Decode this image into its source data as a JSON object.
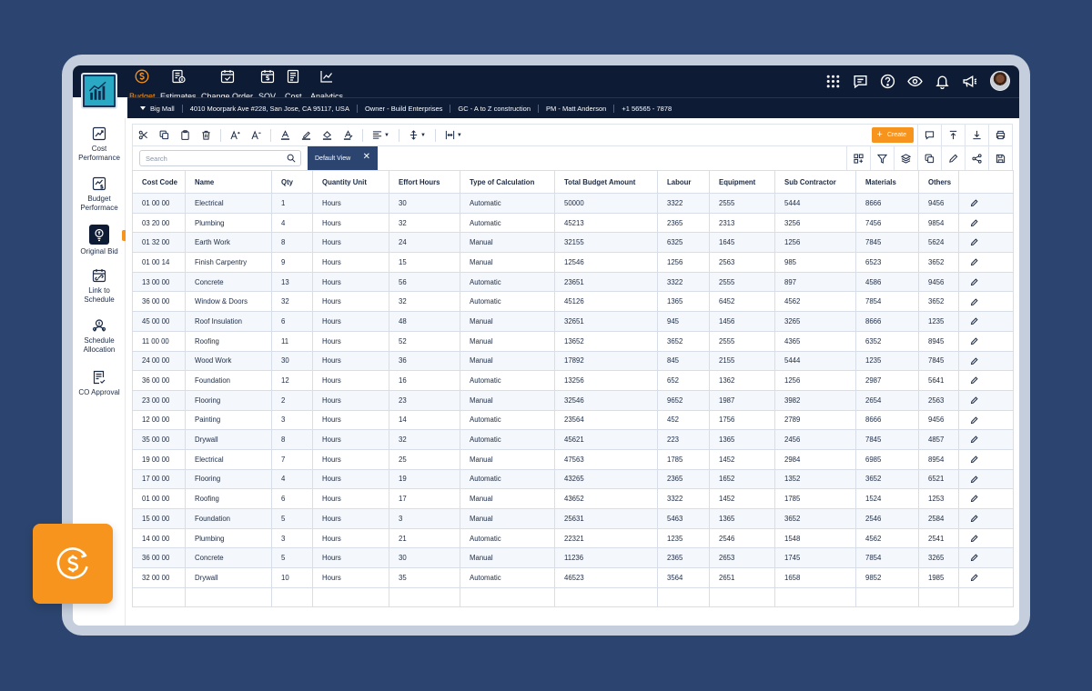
{
  "app": {
    "nav": [
      {
        "label": "Budget",
        "icon": "dollar-icon",
        "active": true
      },
      {
        "label": "Estimates",
        "icon": "estimates-icon",
        "active": false
      },
      {
        "label": "Change Order",
        "icon": "calendar-check-icon",
        "active": false
      },
      {
        "label": "SOV",
        "icon": "calendar-dollar-icon",
        "active": false
      },
      {
        "label": "Cost",
        "icon": "cost-icon",
        "active": false
      },
      {
        "label": "Analytics",
        "icon": "line-chart-icon",
        "active": false
      }
    ],
    "top_icons": [
      "apps-grid-icon",
      "chat-icon",
      "help-icon",
      "eye-icon",
      "bell-icon",
      "megaphone-icon"
    ],
    "accent": "#f7941d",
    "nav_bg": "#0e1b35"
  },
  "project_info": {
    "project": "Big Mall",
    "address": "4010 Moorpark Ave #228, San Jose, CA 95117, USA",
    "owner": "Owner - Build Enterprises",
    "gc": "GC - A to Z construction",
    "pm": "PM - Matt Anderson",
    "phone": "+1 56565 - 7878"
  },
  "sidebar": {
    "items": [
      {
        "label": "Cost Performance",
        "icon": "cost-performance-icon",
        "active": false
      },
      {
        "label": "Budget Performace",
        "icon": "budget-performance-icon",
        "active": false
      },
      {
        "label": "Original Bid",
        "icon": "original-bid-icon",
        "active": true
      },
      {
        "label": "Link to Schedule",
        "icon": "calendar-link-icon",
        "active": false
      },
      {
        "label": "Schedule Allocation",
        "icon": "allocation-icon",
        "active": false
      },
      {
        "label": "CO Approval",
        "icon": "approval-icon",
        "active": false
      }
    ]
  },
  "toolbar": {
    "create_label": "Create",
    "search_placeholder": "Search",
    "view_label": "Default View",
    "close_glyph": "✕"
  },
  "table": {
    "columns": [
      "Cost Code",
      "Name",
      "Qty",
      "Quantity Unit",
      "Effort Hours",
      "Type of Calculation",
      "Total Budget Amount",
      "Labour",
      "Equipment",
      "Sub Contractor",
      "Materials",
      "Others",
      ""
    ],
    "rows": [
      [
        "01 00 00",
        "Electrical",
        "1",
        "Hours",
        "30",
        "Automatic",
        "50000",
        "3322",
        "2555",
        "5444",
        "8666",
        "9456"
      ],
      [
        "03 20 00",
        "Plumbing",
        "4",
        "Hours",
        "32",
        "Automatic",
        "45213",
        "2365",
        "2313",
        "3256",
        "7456",
        "9854"
      ],
      [
        "01 32 00",
        "Earth Work",
        "8",
        "Hours",
        "24",
        "Manual",
        "32155",
        "6325",
        "1645",
        "1256",
        "7845",
        "5624"
      ],
      [
        "01 00 14",
        "Finish Carpentry",
        "9",
        "Hours",
        "15",
        "Manual",
        "12546",
        "1256",
        "2563",
        "985",
        "6523",
        "3652"
      ],
      [
        "13 00 00",
        "Concrete",
        "13",
        "Hours",
        "56",
        "Automatic",
        "23651",
        "3322",
        "2555",
        "897",
        "4586",
        "9456"
      ],
      [
        "36 00 00",
        "Window & Doors",
        "32",
        "Hours",
        "32",
        "Automatic",
        "45126",
        "1365",
        "6452",
        "4562",
        "7854",
        "3652"
      ],
      [
        "45 00 00",
        "Roof Insulation",
        "6",
        "Hours",
        "48",
        "Manual",
        "32651",
        "945",
        "1456",
        "3265",
        "8666",
        "1235"
      ],
      [
        "11 00 00",
        "Roofing",
        "11",
        "Hours",
        "52",
        "Manual",
        "13652",
        "3652",
        "2555",
        "4365",
        "6352",
        "8945"
      ],
      [
        "24 00 00",
        "Wood Work",
        "30",
        "Hours",
        "36",
        "Manual",
        "17892",
        "845",
        "2155",
        "5444",
        "1235",
        "7845"
      ],
      [
        "36 00 00",
        "Foundation",
        "12",
        "Hours",
        "16",
        "Automatic",
        "13256",
        "652",
        "1362",
        "1256",
        "2987",
        "5641"
      ],
      [
        "23 00 00",
        "Flooring",
        "2",
        "Hours",
        "23",
        "Manual",
        "32546",
        "9652",
        "1987",
        "3982",
        "2654",
        "2563"
      ],
      [
        "12 00 00",
        "Painting",
        "3",
        "Hours",
        "14",
        "Automatic",
        "23564",
        "452",
        "1756",
        "2789",
        "8666",
        "9456"
      ],
      [
        "35 00 00",
        "Drywall",
        "8",
        "Hours",
        "32",
        "Automatic",
        "45621",
        "223",
        "1365",
        "2456",
        "7845",
        "4857"
      ],
      [
        "19 00 00",
        "Electrical",
        "7",
        "Hours",
        "25",
        "Manual",
        "47563",
        "1785",
        "1452",
        "2984",
        "6985",
        "8954"
      ],
      [
        "17 00 00",
        "Flooring",
        "4",
        "Hours",
        "19",
        "Automatic",
        "43265",
        "2365",
        "1652",
        "1352",
        "3652",
        "6521"
      ],
      [
        "01 00 00",
        "Roofing",
        "6",
        "Hours",
        "17",
        "Manual",
        "43652",
        "3322",
        "1452",
        "1785",
        "1524",
        "1253"
      ],
      [
        "15 00 00",
        "Foundation",
        "5",
        "Hours",
        "3",
        "Manual",
        "25631",
        "5463",
        "1365",
        "3652",
        "2546",
        "2584"
      ],
      [
        "14 00 00",
        "Plumbing",
        "3",
        "Hours",
        "21",
        "Automatic",
        "22321",
        "1235",
        "2546",
        "1548",
        "4562",
        "2541"
      ],
      [
        "36 00 00",
        "Concrete",
        "5",
        "Hours",
        "30",
        "Manual",
        "11236",
        "2365",
        "2653",
        "1745",
        "7854",
        "3265"
      ],
      [
        "32 00 00",
        "Drywall",
        "10",
        "Hours",
        "35",
        "Automatic",
        "46523",
        "3564",
        "2651",
        "1658",
        "9852",
        "1985"
      ]
    ]
  },
  "badge": {
    "icon": "dollar-circle-icon"
  }
}
